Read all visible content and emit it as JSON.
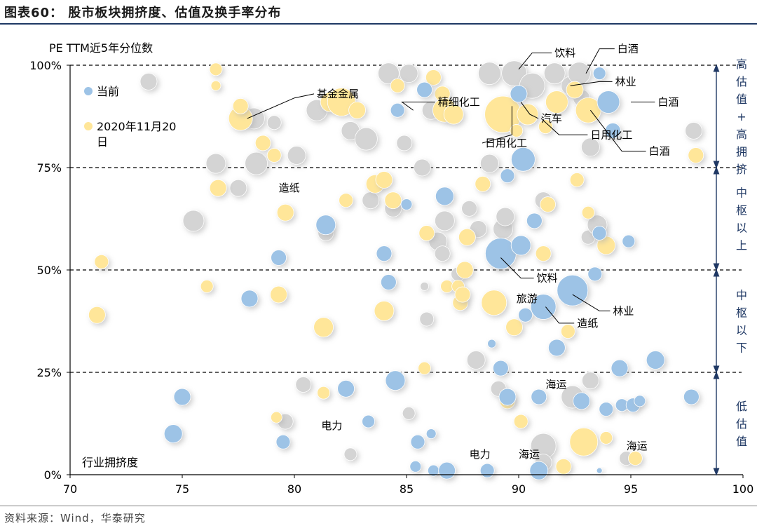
{
  "figure": {
    "title": "图表60：  股市板块拥挤度、估值及换手率分布",
    "source": "资料来源：Wind，华泰研究"
  },
  "chart_data": {
    "type": "scatter",
    "title": "",
    "ylabel": "PE TTM近5年分位数",
    "xlabel": "行业拥挤度",
    "xlim": [
      70,
      100
    ],
    "ylim": [
      0,
      100
    ],
    "x_ticks": [
      "70",
      "75",
      "80",
      "85",
      "90",
      "95",
      "100"
    ],
    "y_ticks": [
      "0%",
      "25%",
      "50%",
      "75%",
      "100%"
    ],
    "y_tick_values": [
      0,
      25,
      50,
      75,
      100
    ],
    "dashed_hlines": [
      25,
      50,
      75,
      100
    ],
    "legend": {
      "placement": "top-left",
      "items": [
        {
          "name": "当前",
          "color": "#9dc3e6"
        },
        {
          "name": "2020年11月20日",
          "line1": "2020年11月20",
          "line2": "日",
          "color": "#ffe699"
        }
      ]
    },
    "zones": [
      {
        "label": "高估值+高拥挤",
        "range": [
          75,
          100
        ]
      },
      {
        "label": "中枢以上",
        "range": [
          50,
          75
        ]
      },
      {
        "label": "中枢以下",
        "range": [
          25,
          50
        ]
      },
      {
        "label": "低估值",
        "range": [
          0,
          25
        ]
      }
    ],
    "colors": {
      "current": "#9dc3e6",
      "past": "#ffe699",
      "shadow": "#b0b0b0",
      "zone_arrow": "#1f3864",
      "zone_text": "#1f3864"
    },
    "bubbles_gray": [
      {
        "x": 73.5,
        "y": 96,
        "r": 12
      },
      {
        "x": 75.5,
        "y": 62,
        "r": 15
      },
      {
        "x": 76.5,
        "y": 76,
        "r": 14
      },
      {
        "x": 77.5,
        "y": 70,
        "r": 12
      },
      {
        "x": 78.2,
        "y": 87,
        "r": 15
      },
      {
        "x": 79.1,
        "y": 86,
        "r": 10
      },
      {
        "x": 78.3,
        "y": 76,
        "r": 16
      },
      {
        "x": 80.1,
        "y": 78,
        "r": 13
      },
      {
        "x": 81,
        "y": 89,
        "r": 15
      },
      {
        "x": 81.4,
        "y": 59,
        "r": 11
      },
      {
        "x": 82.5,
        "y": 84,
        "r": 13
      },
      {
        "x": 83.4,
        "y": 67,
        "r": 12
      },
      {
        "x": 83.2,
        "y": 82,
        "r": 16
      },
      {
        "x": 84.4,
        "y": 65,
        "r": 12
      },
      {
        "x": 84.2,
        "y": 98,
        "r": 15
      },
      {
        "x": 84.9,
        "y": 81,
        "r": 11
      },
      {
        "x": 85.7,
        "y": 75,
        "r": 12
      },
      {
        "x": 85.1,
        "y": 98,
        "r": 13
      },
      {
        "x": 86.1,
        "y": 89,
        "r": 13
      },
      {
        "x": 86.7,
        "y": 62,
        "r": 14
      },
      {
        "x": 86.4,
        "y": 57,
        "r": 13
      },
      {
        "x": 86.6,
        "y": 54,
        "r": 11
      },
      {
        "x": 87.3,
        "y": 49,
        "r": 10
      },
      {
        "x": 87.8,
        "y": 65,
        "r": 11
      },
      {
        "x": 88.2,
        "y": 60,
        "r": 12
      },
      {
        "x": 88.7,
        "y": 76,
        "r": 13
      },
      {
        "x": 88.7,
        "y": 98,
        "r": 16
      },
      {
        "x": 89.3,
        "y": 60,
        "r": 14
      },
      {
        "x": 89.4,
        "y": 63,
        "r": 13
      },
      {
        "x": 89.8,
        "y": 98,
        "r": 18
      },
      {
        "x": 90.6,
        "y": 95,
        "r": 18
      },
      {
        "x": 91.1,
        "y": 67,
        "r": 12
      },
      {
        "x": 91.6,
        "y": 98,
        "r": 15
      },
      {
        "x": 92.3,
        "y": 95,
        "r": 13
      },
      {
        "x": 92.7,
        "y": 98,
        "r": 16
      },
      {
        "x": 92.8,
        "y": 92,
        "r": 12
      },
      {
        "x": 93.1,
        "y": 58,
        "r": 10
      },
      {
        "x": 93.2,
        "y": 80,
        "r": 13
      },
      {
        "x": 93.5,
        "y": 61,
        "r": 14
      },
      {
        "x": 92.4,
        "y": 19,
        "r": 16
      },
      {
        "x": 93.2,
        "y": 23,
        "r": 12
      },
      {
        "x": 97.8,
        "y": 84,
        "r": 12
      },
      {
        "x": 88.1,
        "y": 28,
        "r": 13
      },
      {
        "x": 85.9,
        "y": 38,
        "r": 10
      },
      {
        "x": 80.4,
        "y": 22,
        "r": 11
      },
      {
        "x": 79.6,
        "y": 13,
        "r": 11
      },
      {
        "x": 82.5,
        "y": 5,
        "r": 9
      },
      {
        "x": 85.1,
        "y": 15,
        "r": 9
      },
      {
        "x": 89.1,
        "y": 21,
        "r": 11
      },
      {
        "x": 91.1,
        "y": 7,
        "r": 18
      },
      {
        "x": 91.1,
        "y": 3,
        "r": 12
      },
      {
        "x": 94.8,
        "y": 4,
        "r": 10
      },
      {
        "x": 85.8,
        "y": 46,
        "r": 6
      }
    ],
    "bubbles_current": [
      {
        "x": 74.6,
        "y": 10,
        "r": 13
      },
      {
        "x": 75,
        "y": 19,
        "r": 12
      },
      {
        "x": 78,
        "y": 43,
        "r": 12
      },
      {
        "x": 79.3,
        "y": 53,
        "r": 11
      },
      {
        "x": 79.5,
        "y": 8,
        "r": 10
      },
      {
        "x": 81.4,
        "y": 61,
        "r": 14
      },
      {
        "x": 82.3,
        "y": 21,
        "r": 12
      },
      {
        "x": 83.3,
        "y": 13,
        "r": 9
      },
      {
        "x": 84,
        "y": 54,
        "r": 11
      },
      {
        "x": 84.2,
        "y": 47,
        "r": 11
      },
      {
        "x": 84.5,
        "y": 23,
        "r": 14
      },
      {
        "x": 84.6,
        "y": 89,
        "r": 10
      },
      {
        "x": 85,
        "y": 66,
        "r": 8
      },
      {
        "x": 85.5,
        "y": 8,
        "r": 10
      },
      {
        "x": 85.4,
        "y": 2,
        "r": 8
      },
      {
        "x": 85.8,
        "y": 94,
        "r": 11
      },
      {
        "x": 86.7,
        "y": 68,
        "r": 13
      },
      {
        "x": 86.2,
        "y": 1,
        "r": 8
      },
      {
        "x": 86.8,
        "y": 1,
        "r": 12
      },
      {
        "x": 86.1,
        "y": 10,
        "r": 7
      },
      {
        "x": 88.6,
        "y": 1,
        "r": 10
      },
      {
        "x": 88.8,
        "y": 32,
        "r": 6
      },
      {
        "x": 89.2,
        "y": 54,
        "r": 22
      },
      {
        "x": 89.2,
        "y": 26,
        "r": 11
      },
      {
        "x": 89.5,
        "y": 73,
        "r": 10
      },
      {
        "x": 89.5,
        "y": 19,
        "r": 12
      },
      {
        "x": 90,
        "y": 93,
        "r": 12
      },
      {
        "x": 90.1,
        "y": 56,
        "r": 14
      },
      {
        "x": 90.2,
        "y": 77,
        "r": 17
      },
      {
        "x": 90.3,
        "y": 39,
        "r": 10
      },
      {
        "x": 90.7,
        "y": 62,
        "r": 11
      },
      {
        "x": 90.9,
        "y": 1,
        "r": 13
      },
      {
        "x": 90.9,
        "y": 19,
        "r": 11
      },
      {
        "x": 91.1,
        "y": 41,
        "r": 18
      },
      {
        "x": 91.7,
        "y": 31,
        "r": 12
      },
      {
        "x": 92.4,
        "y": 45,
        "r": 22
      },
      {
        "x": 92.8,
        "y": 18,
        "r": 12
      },
      {
        "x": 93.4,
        "y": 49,
        "r": 10
      },
      {
        "x": 93.6,
        "y": 59,
        "r": 10
      },
      {
        "x": 93.6,
        "y": 98,
        "r": 9
      },
      {
        "x": 93.9,
        "y": 16,
        "r": 10
      },
      {
        "x": 94,
        "y": 91,
        "r": 16
      },
      {
        "x": 94.2,
        "y": 84,
        "r": 11
      },
      {
        "x": 94.5,
        "y": 26,
        "r": 12
      },
      {
        "x": 94.6,
        "y": 17,
        "r": 9
      },
      {
        "x": 94.9,
        "y": 57,
        "r": 9
      },
      {
        "x": 95.1,
        "y": 17,
        "r": 10
      },
      {
        "x": 95.4,
        "y": 18,
        "r": 8
      },
      {
        "x": 96.1,
        "y": 28,
        "r": 13
      },
      {
        "x": 97.7,
        "y": 19,
        "r": 11
      },
      {
        "x": 93.6,
        "y": 1,
        "r": 4
      }
    ],
    "bubbles_past": [
      {
        "x": 71.2,
        "y": 39,
        "r": 12
      },
      {
        "x": 71.4,
        "y": 52,
        "r": 10
      },
      {
        "x": 76.1,
        "y": 46,
        "r": 9
      },
      {
        "x": 76.5,
        "y": 99,
        "r": 9
      },
      {
        "x": 76.5,
        "y": 95,
        "r": 7
      },
      {
        "x": 76.6,
        "y": 70,
        "r": 12
      },
      {
        "x": 77.6,
        "y": 87,
        "r": 17
      },
      {
        "x": 77.6,
        "y": 90,
        "r": 11
      },
      {
        "x": 78.6,
        "y": 81,
        "r": 11
      },
      {
        "x": 79.1,
        "y": 78,
        "r": 10
      },
      {
        "x": 79.3,
        "y": 44,
        "r": 12
      },
      {
        "x": 79.6,
        "y": 64,
        "r": 12
      },
      {
        "x": 79.2,
        "y": 14,
        "r": 8
      },
      {
        "x": 81.3,
        "y": 36,
        "r": 14
      },
      {
        "x": 81.3,
        "y": 20,
        "r": 9
      },
      {
        "x": 81.6,
        "y": 91,
        "r": 14
      },
      {
        "x": 82.1,
        "y": 91,
        "r": 20
      },
      {
        "x": 82.3,
        "y": 67,
        "r": 10
      },
      {
        "x": 82.8,
        "y": 89,
        "r": 12
      },
      {
        "x": 83.6,
        "y": 71,
        "r": 13
      },
      {
        "x": 84,
        "y": 72,
        "r": 12
      },
      {
        "x": 84,
        "y": 40,
        "r": 14
      },
      {
        "x": 84.4,
        "y": 67,
        "r": 12
      },
      {
        "x": 84.6,
        "y": 95,
        "r": 10
      },
      {
        "x": 85.8,
        "y": 26,
        "r": 9
      },
      {
        "x": 85.9,
        "y": 59,
        "r": 11
      },
      {
        "x": 86.2,
        "y": 97,
        "r": 11
      },
      {
        "x": 86.6,
        "y": 93,
        "r": 11
      },
      {
        "x": 86.7,
        "y": 89,
        "r": 17
      },
      {
        "x": 86.8,
        "y": 46,
        "r": 9
      },
      {
        "x": 87.1,
        "y": 88,
        "r": 14
      },
      {
        "x": 87.3,
        "y": 46,
        "r": 9
      },
      {
        "x": 87.4,
        "y": 42,
        "r": 11
      },
      {
        "x": 87.5,
        "y": 44,
        "r": 11
      },
      {
        "x": 87.6,
        "y": 50,
        "r": 12
      },
      {
        "x": 87.7,
        "y": 58,
        "r": 12
      },
      {
        "x": 88.4,
        "y": 71,
        "r": 11
      },
      {
        "x": 88.9,
        "y": 42,
        "r": 18
      },
      {
        "x": 89.1,
        "y": 52,
        "r": 10
      },
      {
        "x": 89.3,
        "y": 88,
        "r": 26
      },
      {
        "x": 89.8,
        "y": 36,
        "r": 12
      },
      {
        "x": 89.9,
        "y": 84,
        "r": 9
      },
      {
        "x": 90.1,
        "y": 13,
        "r": 10
      },
      {
        "x": 90.4,
        "y": 88,
        "r": 15
      },
      {
        "x": 91.1,
        "y": 54,
        "r": 11
      },
      {
        "x": 91.3,
        "y": 66,
        "r": 11
      },
      {
        "x": 91.7,
        "y": 91,
        "r": 16
      },
      {
        "x": 91.2,
        "y": 85,
        "r": 10
      },
      {
        "x": 92,
        "y": 2,
        "r": 11
      },
      {
        "x": 92.2,
        "y": 35,
        "r": 10
      },
      {
        "x": 92.5,
        "y": 94,
        "r": 12
      },
      {
        "x": 92.6,
        "y": 72,
        "r": 10
      },
      {
        "x": 92.9,
        "y": 8,
        "r": 20
      },
      {
        "x": 93.1,
        "y": 89,
        "r": 18
      },
      {
        "x": 93.1,
        "y": 64,
        "r": 9
      },
      {
        "x": 93.9,
        "y": 56,
        "r": 13
      },
      {
        "x": 93.9,
        "y": 9,
        "r": 9
      },
      {
        "x": 95.2,
        "y": 4,
        "r": 10
      },
      {
        "x": 97.9,
        "y": 78,
        "r": 11
      },
      {
        "x": 89.5,
        "y": 18,
        "r": 11
      }
    ],
    "annotations": [
      {
        "text": "基金金属",
        "tx": 81,
        "ty": 93,
        "ax": 77.9,
        "ay": 87,
        "bx": 80,
        "by": 92
      },
      {
        "text": "精细化工",
        "tx": 86.4,
        "ty": 91,
        "ax": 85.3,
        "ay": 89,
        "bx": 84.8,
        "by": 91
      },
      {
        "text": "饮料",
        "tx": 91.6,
        "ty": 103,
        "ax": 90,
        "ay": 99,
        "bx": 90.6,
        "by": 103
      },
      {
        "text": "白酒",
        "tx": 94.4,
        "ty": 104,
        "ax": 93,
        "ay": 98,
        "bx": 93.6,
        "by": 104
      },
      {
        "text": "林业",
        "tx": 94.3,
        "ty": 96,
        "ax": 92.3,
        "ay": 95,
        "bx": 93.6,
        "by": 96
      },
      {
        "text": "白酒",
        "tx": 96.2,
        "ty": 91,
        "ax": 95,
        "ay": 91,
        "bx": 95,
        "by": 91
      },
      {
        "text": "汽车",
        "tx": 91,
        "ty": 87,
        "ax": 90.1,
        "ay": 91,
        "bx": 90.5,
        "by": 88
      },
      {
        "text": "日用化工",
        "tx": 93.2,
        "ty": 83,
        "ax": 91,
        "ay": 87,
        "bx": 91.8,
        "by": 83
      },
      {
        "text": "白酒",
        "tx": 95.8,
        "ty": 79,
        "ax": 93.2,
        "ay": 89,
        "bx": 94.6,
        "by": 79
      },
      {
        "text": "日用化工",
        "tx": 88.5,
        "ty": 81,
        "ax": 89.7,
        "ay": 90,
        "bx": 89.7,
        "by": 83
      },
      {
        "text": "造纸",
        "tx": 79.3,
        "ty": 70,
        "ax": 0,
        "ay": 0,
        "bx": 0,
        "by": 0
      },
      {
        "text": "饮料",
        "tx": 90.8,
        "ty": 48,
        "ax": 89.2,
        "ay": 53,
        "bx": 90.1,
        "by": 48
      },
      {
        "text": "旅游",
        "tx": 89.9,
        "ty": 43,
        "ax": 0,
        "ay": 0,
        "bx": 0,
        "by": 0
      },
      {
        "text": "林业",
        "tx": 94.2,
        "ty": 40,
        "ax": 92.4,
        "ay": 44,
        "bx": 93.6,
        "by": 40
      },
      {
        "text": "造纸",
        "tx": 92.6,
        "ty": 37,
        "ax": 91.2,
        "ay": 41,
        "bx": 91.8,
        "by": 37
      },
      {
        "text": "海运",
        "tx": 91.2,
        "ty": 22,
        "ax": 0,
        "ay": 0,
        "bx": 0,
        "by": 0
      },
      {
        "text": "电力",
        "tx": 81.2,
        "ty": 12,
        "ax": 0,
        "ay": 0,
        "bx": 0,
        "by": 0
      },
      {
        "text": "电力",
        "tx": 87.8,
        "ty": 5,
        "ax": 0,
        "ay": 0,
        "bx": 0,
        "by": 0
      },
      {
        "text": "海运",
        "tx": 90,
        "ty": 5,
        "ax": 0,
        "ay": 0,
        "bx": 0,
        "by": 0
      },
      {
        "text": "海运",
        "tx": 94.8,
        "ty": 7,
        "ax": 0,
        "ay": 0,
        "bx": 0,
        "by": 0
      }
    ]
  }
}
